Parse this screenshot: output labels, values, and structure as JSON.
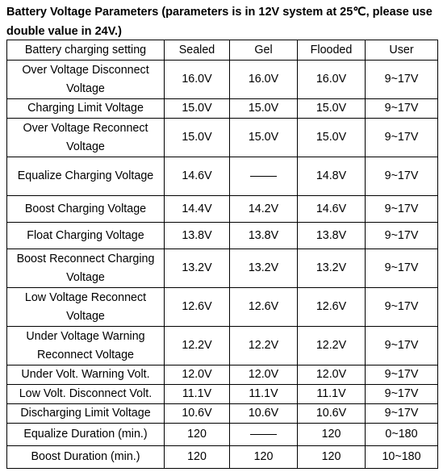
{
  "title": "Battery Voltage Parameters (parameters is in 12V system at 25℃, please use double value in 24V.)",
  "table": {
    "headers": [
      "Battery charging setting",
      "Sealed",
      "Gel",
      "Flooded",
      "User"
    ],
    "rows": [
      {
        "label": "Over Voltage Disconnect Voltage",
        "cells": [
          "16.0V",
          "16.0V",
          "16.0V",
          "9~17V"
        ]
      },
      {
        "label": "Charging Limit Voltage",
        "cells": [
          "15.0V",
          "15.0V",
          "15.0V",
          "9~17V"
        ]
      },
      {
        "label": "Over Voltage Reconnect Voltage",
        "cells": [
          "15.0V",
          "15.0V",
          "15.0V",
          "9~17V"
        ]
      },
      {
        "label": "Equalize Charging Voltage",
        "cells": [
          "14.6V",
          "—",
          "14.8V",
          "9~17V"
        ]
      },
      {
        "label": "Boost Charging Voltage",
        "cells": [
          "14.4V",
          "14.2V",
          "14.6V",
          "9~17V"
        ]
      },
      {
        "label": "Float Charging Voltage",
        "cells": [
          "13.8V",
          "13.8V",
          "13.8V",
          "9~17V"
        ]
      },
      {
        "label": "Boost Reconnect Charging Voltage",
        "cells": [
          "13.2V",
          "13.2V",
          "13.2V",
          "9~17V"
        ]
      },
      {
        "label": "Low Voltage Reconnect Voltage",
        "cells": [
          "12.6V",
          "12.6V",
          "12.6V",
          "9~17V"
        ]
      },
      {
        "label": "Under Voltage Warning Reconnect Voltage",
        "cells": [
          "12.2V",
          "12.2V",
          "12.2V",
          "9~17V"
        ]
      },
      {
        "label": "Under Volt. Warning Volt.",
        "cells": [
          "12.0V",
          "12.0V",
          "12.0V",
          "9~17V"
        ]
      },
      {
        "label": "Low Volt. Disconnect Volt.",
        "cells": [
          "11.1V",
          "11.1V",
          "11.1V",
          "9~17V"
        ]
      },
      {
        "label": "Discharging Limit Voltage",
        "cells": [
          "10.6V",
          "10.6V",
          "10.6V",
          "9~17V"
        ]
      },
      {
        "label": "Equalize Duration (min.)",
        "cells": [
          "120",
          "—",
          "120",
          "0~180"
        ]
      },
      {
        "label": "Boost Duration (min.)",
        "cells": [
          "120",
          "120",
          "120",
          "10~180"
        ]
      }
    ]
  }
}
